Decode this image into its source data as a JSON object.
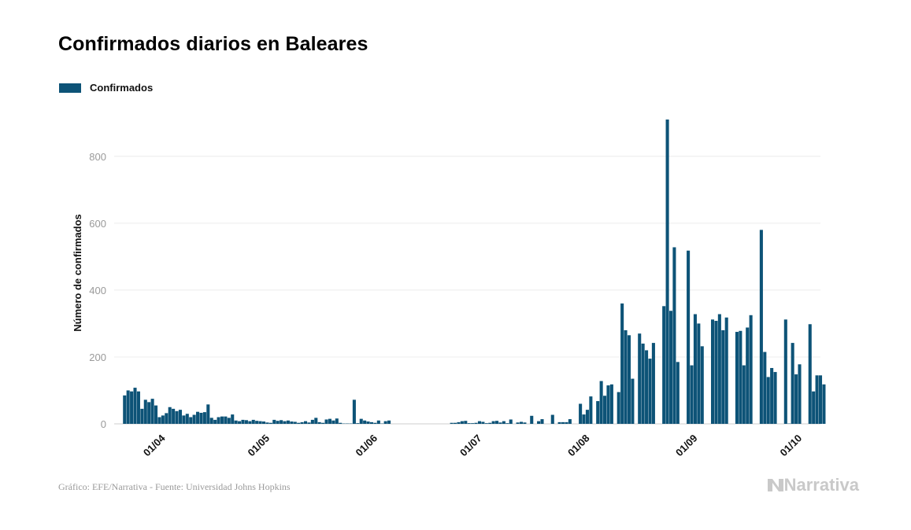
{
  "chart_data": {
    "type": "bar",
    "title": "Confirmados diarios en Baleares",
    "xlabel": "",
    "ylabel": "Número de confirmados",
    "legend": {
      "placement": "top-left",
      "entries": [
        "Confirmados"
      ]
    },
    "grid": true,
    "ylim": [
      0,
      900
    ],
    "yticks": [
      0,
      200,
      400,
      600,
      800
    ],
    "xlim": [
      "2020-03-19",
      "2020-10-08"
    ],
    "xticks": [
      {
        "date": "2020-04-01",
        "label": "01/04"
      },
      {
        "date": "2020-05-01",
        "label": "01/05"
      },
      {
        "date": "2020-06-01",
        "label": "01/06"
      },
      {
        "date": "2020-07-01",
        "label": "01/07"
      },
      {
        "date": "2020-08-01",
        "label": "01/08"
      },
      {
        "date": "2020-09-01",
        "label": "01/09"
      },
      {
        "date": "2020-10-01",
        "label": "01/10"
      }
    ],
    "series": [
      {
        "name": "Confirmados",
        "color": "#0d5377",
        "points": [
          [
            "2020-03-22",
            85
          ],
          [
            "2020-03-23",
            100
          ],
          [
            "2020-03-24",
            97
          ],
          [
            "2020-03-25",
            108
          ],
          [
            "2020-03-26",
            97
          ],
          [
            "2020-03-27",
            45
          ],
          [
            "2020-03-28",
            72
          ],
          [
            "2020-03-29",
            65
          ],
          [
            "2020-03-30",
            75
          ],
          [
            "2020-03-31",
            55
          ],
          [
            "2020-04-01",
            20
          ],
          [
            "2020-04-02",
            25
          ],
          [
            "2020-04-03",
            32
          ],
          [
            "2020-04-04",
            50
          ],
          [
            "2020-04-05",
            45
          ],
          [
            "2020-04-06",
            38
          ],
          [
            "2020-04-07",
            42
          ],
          [
            "2020-04-08",
            25
          ],
          [
            "2020-04-09",
            30
          ],
          [
            "2020-04-10",
            20
          ],
          [
            "2020-04-11",
            27
          ],
          [
            "2020-04-12",
            36
          ],
          [
            "2020-04-13",
            33
          ],
          [
            "2020-04-14",
            35
          ],
          [
            "2020-04-15",
            58
          ],
          [
            "2020-04-16",
            18
          ],
          [
            "2020-04-17",
            12
          ],
          [
            "2020-04-18",
            20
          ],
          [
            "2020-04-19",
            22
          ],
          [
            "2020-04-20",
            22
          ],
          [
            "2020-04-21",
            18
          ],
          [
            "2020-04-22",
            28
          ],
          [
            "2020-04-23",
            10
          ],
          [
            "2020-04-24",
            8
          ],
          [
            "2020-04-25",
            12
          ],
          [
            "2020-04-26",
            11
          ],
          [
            "2020-04-27",
            8
          ],
          [
            "2020-04-28",
            12
          ],
          [
            "2020-04-29",
            9
          ],
          [
            "2020-04-30",
            8
          ],
          [
            "2020-05-01",
            7
          ],
          [
            "2020-05-02",
            4
          ],
          [
            "2020-05-03",
            3
          ],
          [
            "2020-05-04",
            12
          ],
          [
            "2020-05-05",
            9
          ],
          [
            "2020-05-06",
            11
          ],
          [
            "2020-05-07",
            8
          ],
          [
            "2020-05-08",
            10
          ],
          [
            "2020-05-09",
            7
          ],
          [
            "2020-05-10",
            6
          ],
          [
            "2020-05-11",
            3
          ],
          [
            "2020-05-12",
            5
          ],
          [
            "2020-05-13",
            8
          ],
          [
            "2020-05-14",
            4
          ],
          [
            "2020-05-15",
            12
          ],
          [
            "2020-05-16",
            18
          ],
          [
            "2020-05-17",
            5
          ],
          [
            "2020-05-18",
            3
          ],
          [
            "2020-05-19",
            13
          ],
          [
            "2020-05-20",
            15
          ],
          [
            "2020-05-21",
            10
          ],
          [
            "2020-05-22",
            16
          ],
          [
            "2020-05-23",
            3
          ],
          [
            "2020-05-24",
            1
          ],
          [
            "2020-05-25",
            1
          ],
          [
            "2020-05-26",
            1
          ],
          [
            "2020-05-27",
            72
          ],
          [
            "2020-05-28",
            2
          ],
          [
            "2020-05-29",
            15
          ],
          [
            "2020-05-30",
            10
          ],
          [
            "2020-05-31",
            7
          ],
          [
            "2020-06-01",
            5
          ],
          [
            "2020-06-02",
            3
          ],
          [
            "2020-06-03",
            10
          ],
          [
            "2020-06-04",
            1
          ],
          [
            "2020-06-05",
            8
          ],
          [
            "2020-06-06",
            10
          ],
          [
            "2020-06-24",
            3
          ],
          [
            "2020-06-25",
            3
          ],
          [
            "2020-06-26",
            5
          ],
          [
            "2020-06-27",
            8
          ],
          [
            "2020-06-28",
            9
          ],
          [
            "2020-06-29",
            2
          ],
          [
            "2020-06-30",
            2
          ],
          [
            "2020-07-01",
            3
          ],
          [
            "2020-07-02",
            8
          ],
          [
            "2020-07-03",
            6
          ],
          [
            "2020-07-04",
            2
          ],
          [
            "2020-07-05",
            3
          ],
          [
            "2020-07-06",
            8
          ],
          [
            "2020-07-07",
            9
          ],
          [
            "2020-07-08",
            4
          ],
          [
            "2020-07-09",
            8
          ],
          [
            "2020-07-10",
            2
          ],
          [
            "2020-07-11",
            13
          ],
          [
            "2020-07-13",
            4
          ],
          [
            "2020-07-14",
            6
          ],
          [
            "2020-07-15",
            4
          ],
          [
            "2020-07-17",
            24
          ],
          [
            "2020-07-19",
            8
          ],
          [
            "2020-07-20",
            14
          ],
          [
            "2020-07-23",
            27
          ],
          [
            "2020-07-25",
            5
          ],
          [
            "2020-07-26",
            5
          ],
          [
            "2020-07-27",
            5
          ],
          [
            "2020-07-28",
            14
          ],
          [
            "2020-07-31",
            60
          ],
          [
            "2020-08-01",
            28
          ],
          [
            "2020-08-02",
            42
          ],
          [
            "2020-08-03",
            82
          ],
          [
            "2020-08-05",
            68
          ],
          [
            "2020-08-06",
            128
          ],
          [
            "2020-08-07",
            84
          ],
          [
            "2020-08-08",
            115
          ],
          [
            "2020-08-09",
            118
          ],
          [
            "2020-08-11",
            95
          ],
          [
            "2020-08-12",
            360
          ],
          [
            "2020-08-13",
            280
          ],
          [
            "2020-08-14",
            265
          ],
          [
            "2020-08-15",
            135
          ],
          [
            "2020-08-17",
            270
          ],
          [
            "2020-08-18",
            240
          ],
          [
            "2020-08-19",
            220
          ],
          [
            "2020-08-20",
            195
          ],
          [
            "2020-08-21",
            242
          ],
          [
            "2020-08-24",
            352
          ],
          [
            "2020-08-25",
            910
          ],
          [
            "2020-08-26",
            338
          ],
          [
            "2020-08-27",
            528
          ],
          [
            "2020-08-28",
            185
          ],
          [
            "2020-08-31",
            518
          ],
          [
            "2020-09-01",
            175
          ],
          [
            "2020-09-02",
            328
          ],
          [
            "2020-09-03",
            300
          ],
          [
            "2020-09-04",
            232
          ],
          [
            "2020-09-07",
            312
          ],
          [
            "2020-09-08",
            308
          ],
          [
            "2020-09-09",
            328
          ],
          [
            "2020-09-10",
            280
          ],
          [
            "2020-09-11",
            318
          ],
          [
            "2020-09-14",
            275
          ],
          [
            "2020-09-15",
            278
          ],
          [
            "2020-09-16",
            175
          ],
          [
            "2020-09-17",
            288
          ],
          [
            "2020-09-18",
            325
          ],
          [
            "2020-09-21",
            580
          ],
          [
            "2020-09-22",
            215
          ],
          [
            "2020-09-23",
            140
          ],
          [
            "2020-09-24",
            167
          ],
          [
            "2020-09-25",
            155
          ],
          [
            "2020-09-28",
            312
          ],
          [
            "2020-09-29",
            1
          ],
          [
            "2020-09-30",
            242
          ],
          [
            "2020-10-01",
            148
          ],
          [
            "2020-10-02",
            178
          ],
          [
            "2020-10-05",
            298
          ],
          [
            "2020-10-06",
            97
          ],
          [
            "2020-10-07",
            145
          ],
          [
            "2020-10-08",
            145
          ],
          [
            "2020-10-09",
            118
          ]
        ]
      }
    ]
  },
  "footer": {
    "source": "Gráfico: EFE/Narrativa - Fuente: Universidad Johns Hopkins",
    "brand": "Narrativa"
  }
}
